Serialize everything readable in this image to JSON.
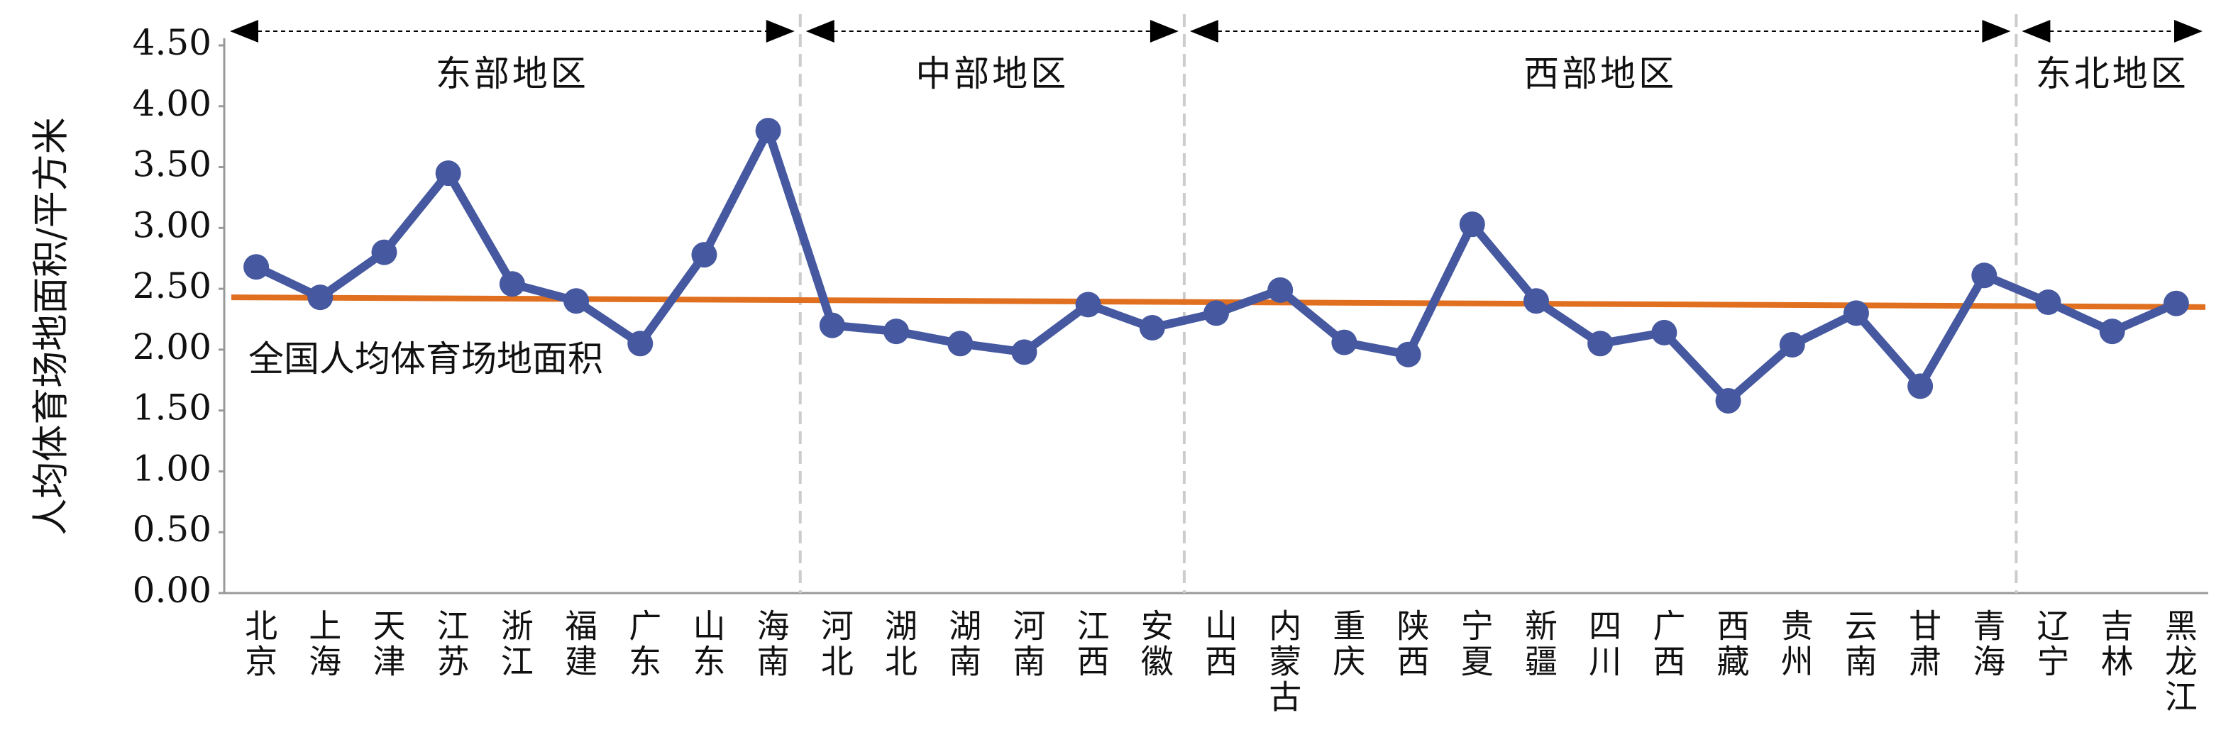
{
  "chart_data": {
    "type": "line",
    "y_label": "人均体育场地面积/平方米",
    "categories": [
      "北京",
      "上海",
      "天津",
      "江苏",
      "浙江",
      "福建",
      "广东",
      "山东",
      "海南",
      "河北",
      "湖北",
      "湖南",
      "河南",
      "江西",
      "安徽",
      "山西",
      "内蒙古",
      "重庆",
      "陕西",
      "宁夏",
      "新疆",
      "四川",
      "广西",
      "西藏",
      "贵州",
      "云南",
      "甘肃",
      "青海",
      "辽宁",
      "吉林",
      "黑龙江"
    ],
    "series": [
      {
        "color": "#4558a0",
        "values": [
          2.68,
          2.43,
          2.8,
          3.45,
          2.54,
          2.4,
          2.05,
          2.78,
          3.8,
          2.2,
          2.15,
          2.05,
          1.98,
          2.37,
          2.18,
          2.3,
          2.49,
          2.06,
          1.96,
          3.03,
          2.4,
          2.05,
          2.14,
          1.58,
          2.04,
          2.3,
          1.7,
          2.61,
          2.39,
          2.15,
          2.38
        ]
      }
    ],
    "reference_line": {
      "label": "全国人均体育场地面积",
      "color": "#e07020",
      "start": 2.43,
      "end": 2.35
    },
    "regions": [
      {
        "label": "东部地区",
        "span": [
          0,
          8
        ]
      },
      {
        "label": "中部地区",
        "span": [
          9,
          14
        ]
      },
      {
        "label": "西部地区",
        "span": [
          15,
          27
        ]
      },
      {
        "label": "东北地区",
        "span": [
          28,
          30
        ]
      }
    ],
    "ylim": [
      0,
      4.5
    ],
    "yticks": [
      {
        "value": 0,
        "label": "0.00"
      },
      {
        "value": 0.5,
        "label": "0.50"
      },
      {
        "value": 1,
        "label": "1.00"
      },
      {
        "value": 1.5,
        "label": "1.50"
      },
      {
        "value": 2,
        "label": "2.00"
      },
      {
        "value": 2.5,
        "label": "2.50"
      },
      {
        "value": 3,
        "label": "3.00"
      },
      {
        "value": 3.5,
        "label": "3.50"
      },
      {
        "value": 4,
        "label": "4.00"
      },
      {
        "value": 4.5,
        "label": "4.50"
      }
    ]
  }
}
